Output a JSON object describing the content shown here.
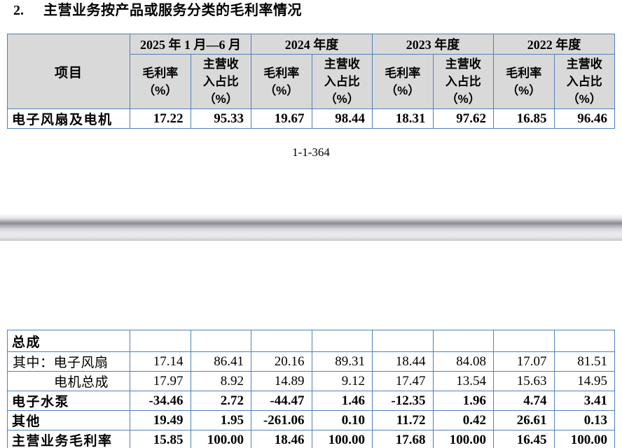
{
  "document": {
    "heading": {
      "number": "2.",
      "text": "主营业务按产品或服务分类的毛利率情况"
    },
    "page_number": "1-1-364"
  },
  "colors": {
    "table_border": "#4f81bd",
    "header_background": "#d9d9d9",
    "text": "#000000"
  },
  "table_page1": {
    "corner_header": "项目",
    "periods": [
      "2025 年 1 月—6 月",
      "2024 年度",
      "2023 年度",
      "2022 年度"
    ],
    "sub_headers": [
      "毛利率\n（%）",
      "主营收\n入占比\n（%）",
      "毛利率\n（%）",
      "主营收\n入占比\n（%）",
      "毛利率\n（%）",
      "主营收\n入占比\n（%）",
      "毛利率\n（%）",
      "主营收\n入占比\n（%）"
    ],
    "rows": [
      {
        "label": "电子风扇及电机",
        "values": [
          "17.22",
          "95.33",
          "19.67",
          "98.44",
          "18.31",
          "97.62",
          "16.85",
          "96.46"
        ]
      }
    ]
  },
  "table_page2": {
    "rows": [
      {
        "label": "总成",
        "values": [
          "",
          "",
          "",
          "",
          "",
          "",
          "",
          ""
        ]
      },
      {
        "label": "其中：电子风扇",
        "values": [
          "17.14",
          "86.41",
          "20.16",
          "89.31",
          "18.44",
          "84.08",
          "17.07",
          "81.51"
        ]
      },
      {
        "label": "电机总成",
        "values": [
          "17.97",
          "8.92",
          "14.89",
          "9.12",
          "17.47",
          "13.54",
          "15.63",
          "14.95"
        ]
      },
      {
        "label": "电子水泵",
        "values": [
          "-34.46",
          "2.72",
          "-44.47",
          "1.46",
          "-12.35",
          "1.96",
          "4.74",
          "3.41"
        ]
      },
      {
        "label": "其他",
        "values": [
          "19.49",
          "1.95",
          "-261.06",
          "0.10",
          "11.72",
          "0.42",
          "26.61",
          "0.13"
        ]
      },
      {
        "label": "主营业务毛利率",
        "values": [
          "15.85",
          "100.00",
          "18.46",
          "100.00",
          "17.68",
          "100.00",
          "16.45",
          "100.00"
        ]
      }
    ]
  }
}
